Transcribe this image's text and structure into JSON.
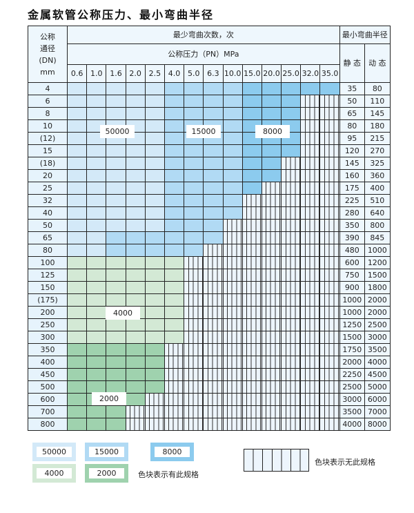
{
  "title": "金属软管公称压力、最小弯曲半径",
  "header": {
    "dn_label": [
      "公称",
      "通径",
      "(DN)",
      "mm"
    ],
    "bend_count": "最少弯曲次数，次",
    "pressure": "公称压力（PN）MPa",
    "min_radius": "最小弯曲半径",
    "static": "静 态",
    "dynamic": "动 态",
    "pressures": [
      "0.6",
      "1.0",
      "1.6",
      "2.0",
      "2.5",
      "4.0",
      "5.0",
      "6.3",
      "10.0",
      "15.0",
      "20.0",
      "25.0",
      "32.0",
      "35.0"
    ]
  },
  "colors": {
    "a": "#d3e9f8",
    "b": "#b1daf4",
    "c": "#8ccbee",
    "g1": "#d3e9d5",
    "g2": "#9fd2ae"
  },
  "rows": [
    {
      "dn": "4",
      "static": "35",
      "dynamic": "80",
      "cells": "aaaaabbbbccccc"
    },
    {
      "dn": "6",
      "static": "50",
      "dynamic": "110",
      "cells": "aaaaabbbbccchh"
    },
    {
      "dn": "8",
      "static": "65",
      "dynamic": "145",
      "cells": "aaaaabbbbccchh"
    },
    {
      "dn": "10",
      "static": "80",
      "dynamic": "180",
      "cells": "aaaaabbbbccchh"
    },
    {
      "dn": "(12)",
      "static": "95",
      "dynamic": "215",
      "cells": "aaaaabbbbccchh"
    },
    {
      "dn": "15",
      "static": "120",
      "dynamic": "270",
      "cells": "aaaaabbbbccchh"
    },
    {
      "dn": "(18)",
      "static": "145",
      "dynamic": "325",
      "cells": "aaaaabbbbcchhh"
    },
    {
      "dn": "20",
      "static": "160",
      "dynamic": "360",
      "cells": "aaaaabbbbcchhh"
    },
    {
      "dn": "25",
      "static": "175",
      "dynamic": "400",
      "cells": "aaaaabbbbchhhh"
    },
    {
      "dn": "32",
      "static": "225",
      "dynamic": "510",
      "cells": "aaaaabbbbhhhhh"
    },
    {
      "dn": "40",
      "static": "280",
      "dynamic": "640",
      "cells": "aaaaabbbbhhhhh"
    },
    {
      "dn": "50",
      "static": "350",
      "dynamic": "800",
      "cells": "aaaaabbbhhhhhh"
    },
    {
      "dn": "65",
      "static": "390",
      "dynamic": "845",
      "cells": "aabbbbbbhhhhhh"
    },
    {
      "dn": "80",
      "static": "480",
      "dynamic": "1000",
      "cells": "aabbbbbhhhhhhh"
    },
    {
      "dn": "100",
      "static": "600",
      "dynamic": "1200",
      "cells": "g1g1g1g1g1g1hhhhhhhh"
    },
    {
      "dn": "125",
      "static": "750",
      "dynamic": "1500",
      "cells": "g1g1g1g1g1g1hhhhhhhh"
    },
    {
      "dn": "150",
      "static": "900",
      "dynamic": "1800",
      "cells": "g1g1g1g1g1g1hhhhhhhh"
    },
    {
      "dn": "(175)",
      "static": "1000",
      "dynamic": "2000",
      "cells": "g1g1g1g1g1g1hhhhhhhh"
    },
    {
      "dn": "200",
      "static": "1000",
      "dynamic": "2000",
      "cells": "g1g1g1g1g1g1hhhhhhhh"
    },
    {
      "dn": "250",
      "static": "1250",
      "dynamic": "2500",
      "cells": "g1g1g1g1g1g1hhhhhhhh"
    },
    {
      "dn": "300",
      "static": "1500",
      "dynamic": "3000",
      "cells": "g1g1g1g1g1g1hhhhhhhh"
    },
    {
      "dn": "350",
      "static": "1750",
      "dynamic": "3500",
      "cells": "g2g2g2g2g2hhhhhhhhh"
    },
    {
      "dn": "400",
      "static": "2000",
      "dynamic": "4000",
      "cells": "g2g2g2g2g2hhhhhhhhh"
    },
    {
      "dn": "450",
      "static": "2250",
      "dynamic": "4500",
      "cells": "g2g2g2g2g2hhhhhhhhh"
    },
    {
      "dn": "500",
      "static": "2500",
      "dynamic": "5000",
      "cells": "g2g2g2g2g2hhhhhhhhh"
    },
    {
      "dn": "600",
      "static": "3000",
      "dynamic": "6000",
      "cells": "g2g2g2g2hhhhhhhhhh"
    },
    {
      "dn": "700",
      "static": "3500",
      "dynamic": "7000",
      "cells": "g2g2g2hhhhhhhhhhh"
    },
    {
      "dn": "800",
      "static": "4000",
      "dynamic": "8000",
      "cells": "g2g2g2hhhhhhhhhhh"
    }
  ],
  "region_labels": {
    "a": "50000",
    "b": "15000",
    "c": "8000",
    "g1": "4000",
    "g2": "2000"
  },
  "legend": {
    "items": [
      {
        "code": "a",
        "label": "50000"
      },
      {
        "code": "b",
        "label": "15000"
      },
      {
        "code": "c",
        "label": "8000"
      },
      {
        "code": "g1",
        "label": "4000"
      },
      {
        "code": "g2",
        "label": "2000"
      }
    ],
    "has_spec": "色块表示有此规格",
    "no_spec": "色块表示无此规格"
  }
}
